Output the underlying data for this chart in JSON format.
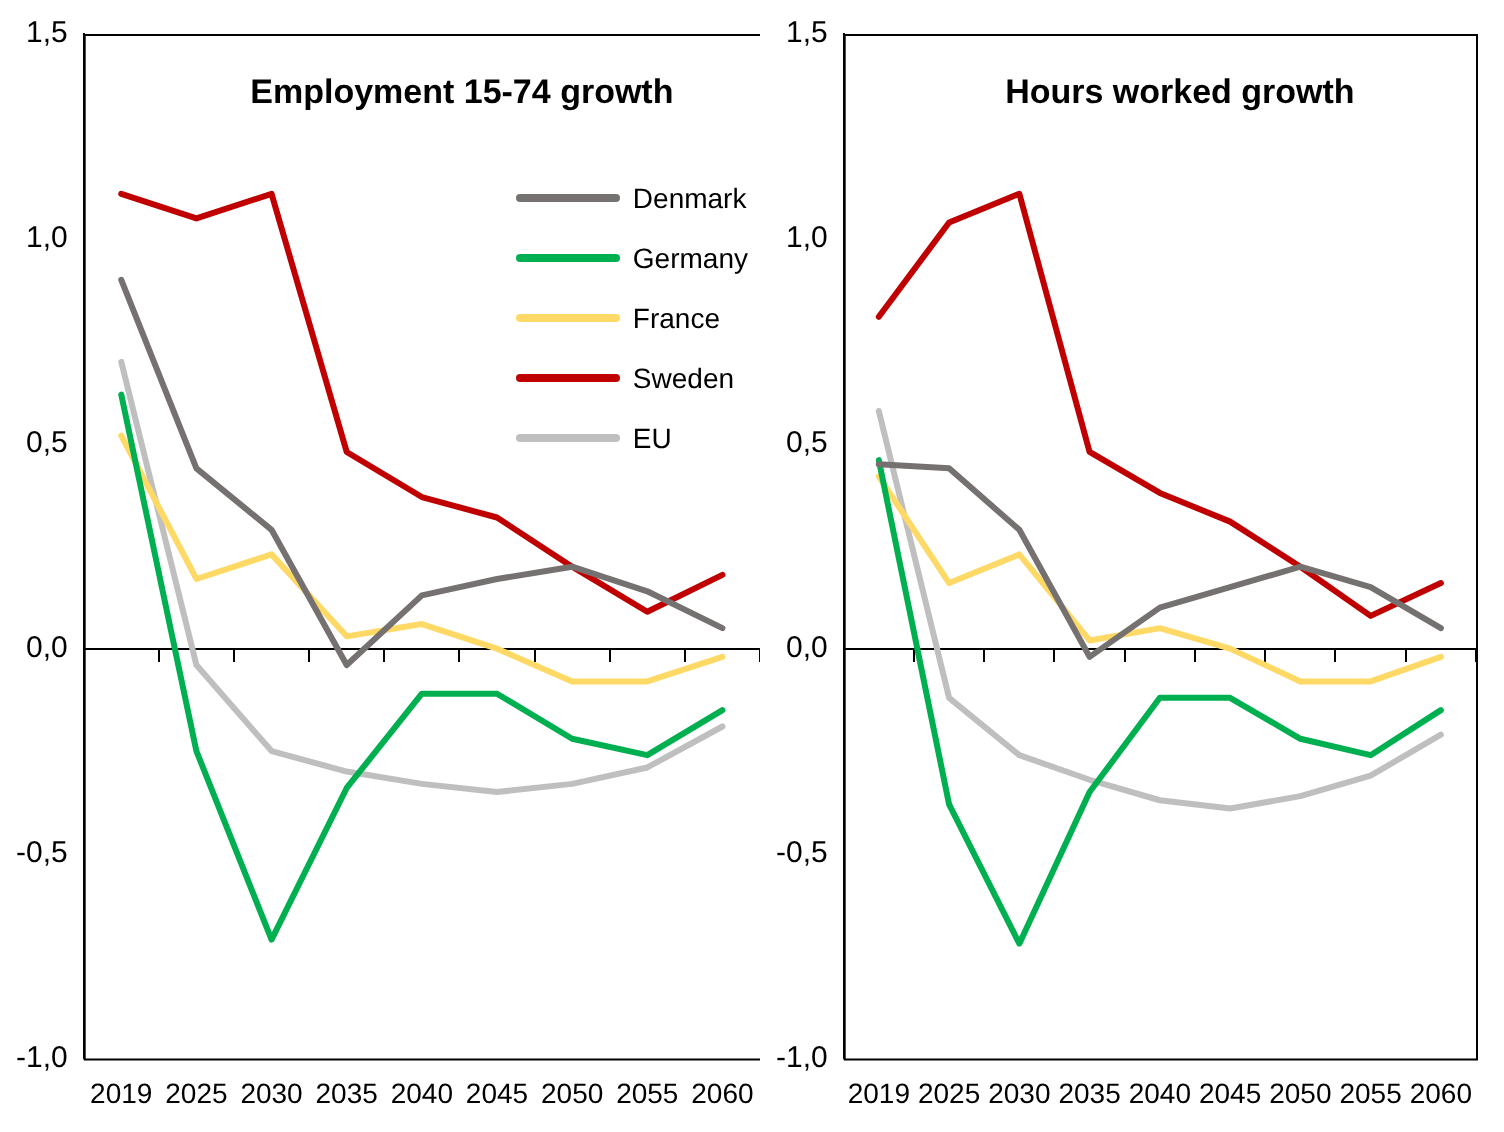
{
  "chart_data": [
    {
      "type": "line",
      "title": "Employment 15-74 growth",
      "categories": [
        "2019",
        "2025",
        "2030",
        "2035",
        "2040",
        "2045",
        "2050",
        "2055",
        "2060"
      ],
      "legend": "top right",
      "marker": "none",
      "ylim": [
        -1.0,
        1.5
      ],
      "yticks": [
        {
          "value": -1.0,
          "label": "-1,0"
        },
        {
          "value": -0.5,
          "label": "-0,5"
        },
        {
          "value": 0,
          "label": "0,0"
        },
        {
          "value": 0.5,
          "label": "0,5"
        },
        {
          "value": 1.0,
          "label": "1,0"
        },
        {
          "value": 1.5,
          "label": "1,5"
        }
      ],
      "series": [
        {
          "name": "Denmark",
          "color": "#767171",
          "values": [
            0.9,
            0.44,
            0.29,
            -0.04,
            0.13,
            0.17,
            0.2,
            0.14,
            0.05
          ]
        },
        {
          "name": "Germany",
          "color": "#00b050",
          "values": [
            0.62,
            -0.25,
            -0.71,
            -0.34,
            -0.11,
            -0.11,
            -0.22,
            -0.26,
            -0.15
          ]
        },
        {
          "name": "France",
          "color": "#ffd966",
          "values": [
            0.52,
            0.17,
            0.23,
            0.03,
            0.06,
            0.0,
            -0.08,
            -0.08,
            -0.02
          ]
        },
        {
          "name": "Sweden",
          "color": "#c00000",
          "values": [
            1.11,
            1.05,
            1.11,
            0.48,
            0.37,
            0.32,
            0.2,
            0.09,
            0.18
          ]
        },
        {
          "name": "EU",
          "color": "#bfbfbf",
          "values": [
            0.7,
            -0.04,
            -0.25,
            -0.3,
            -0.33,
            -0.35,
            -0.33,
            -0.29,
            -0.19
          ]
        }
      ]
    },
    {
      "type": "line",
      "title": "Hours worked growth",
      "categories": [
        "2019",
        "2025",
        "2030",
        "2035",
        "2040",
        "2045",
        "2050",
        "2055",
        "2060"
      ],
      "marker": "none",
      "ylim": [
        -1.0,
        1.5
      ],
      "yticks": [
        {
          "value": -1.0,
          "label": "-1,0"
        },
        {
          "value": -0.5,
          "label": "-0,5"
        },
        {
          "value": 0,
          "label": "0,0"
        },
        {
          "value": 0.5,
          "label": "0,5"
        },
        {
          "value": 1.0,
          "label": "1,0"
        },
        {
          "value": 1.5,
          "label": "1,5"
        }
      ],
      "series": [
        {
          "color": "#767171",
          "values": [
            0.45,
            0.44,
            0.29,
            -0.02,
            0.1,
            0.15,
            0.2,
            0.15,
            0.05
          ]
        },
        {
          "color": "#00b050",
          "values": [
            0.46,
            -0.38,
            -0.72,
            -0.35,
            -0.12,
            -0.12,
            -0.22,
            -0.26,
            -0.15
          ]
        },
        {
          "color": "#ffd966",
          "values": [
            0.42,
            0.16,
            0.23,
            0.02,
            0.05,
            0.0,
            -0.08,
            -0.08,
            -0.02
          ]
        },
        {
          "color": "#c00000",
          "values": [
            0.81,
            1.04,
            1.11,
            0.48,
            0.38,
            0.31,
            0.2,
            0.08,
            0.16
          ]
        },
        {
          "color": "#bfbfbf",
          "values": [
            0.58,
            -0.12,
            -0.26,
            -0.32,
            -0.37,
            -0.39,
            -0.36,
            -0.31,
            -0.21
          ]
        }
      ]
    }
  ]
}
